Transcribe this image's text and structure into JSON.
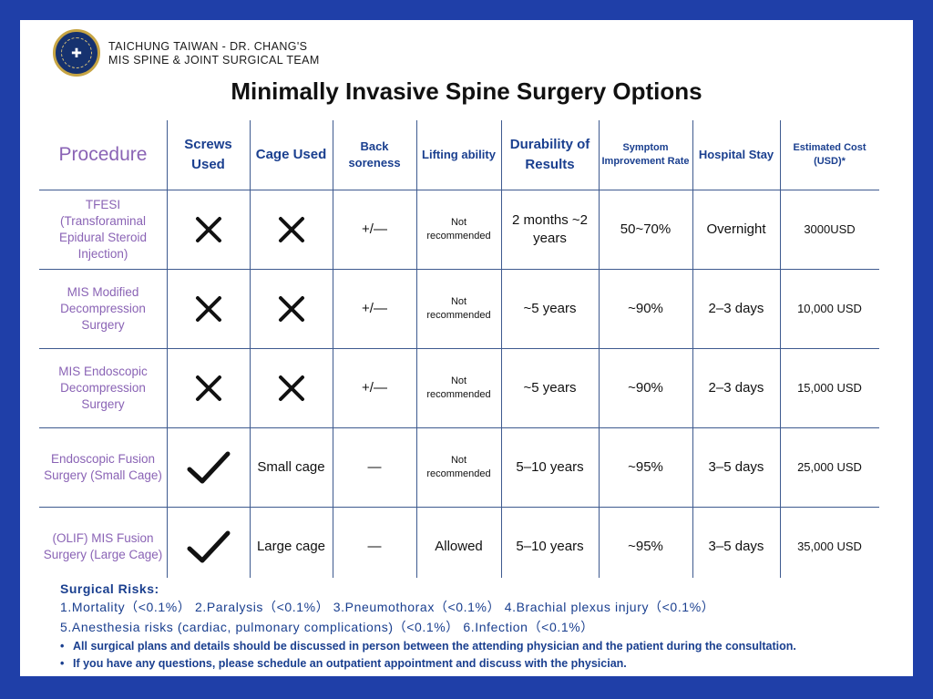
{
  "header": {
    "logo_icon": "clinic-seal-icon",
    "brand_line1": "TAICHUNG TAIWAN - DR. CHANG'S",
    "brand_line2": "MIS SPINE & JOINT SURGICAL TEAM",
    "title": "Minimally Invasive Spine Surgery Options"
  },
  "table": {
    "columns": [
      "Procedure",
      "Screws Used",
      "Cage Used",
      "Back soreness",
      "Lifting ability",
      "Durability of Results",
      "Symptom Improvement Rate",
      "Hospital Stay",
      "Estimated Cost (USD)*"
    ],
    "rows": [
      {
        "procedure": "TFESI (Transforaminal Epidural Steroid Injection)",
        "screws": "cross-icon",
        "cage": "cross-icon",
        "back_soreness": "+/—",
        "lifting": "Not recommended",
        "durability": "2 months ~2 years",
        "improvement": "50~70%",
        "stay": "Overnight",
        "cost": "3000USD"
      },
      {
        "procedure": "MIS Modified Decompression Surgery",
        "screws": "cross-icon",
        "cage": "cross-icon",
        "back_soreness": "+/—",
        "lifting": "Not recommended",
        "durability": "~5 years",
        "improvement": "~90%",
        "stay": "2–3 days",
        "cost": "10,000 USD"
      },
      {
        "procedure": "MIS Endoscopic Decompression Surgery",
        "screws": "cross-icon",
        "cage": "cross-icon",
        "back_soreness": "+/—",
        "lifting": "Not recommended",
        "durability": "~5 years",
        "improvement": "~90%",
        "stay": "2–3 days",
        "cost": "15,000 USD"
      },
      {
        "procedure": "Endoscopic Fusion Surgery (Small Cage)",
        "screws": "check-icon",
        "cage": "Small cage",
        "back_soreness": "—",
        "lifting": "Not recommended",
        "durability": "5–10 years",
        "improvement": "~95%",
        "stay": "3–5 days",
        "cost": "25,000 USD"
      },
      {
        "procedure": "(OLIF) MIS Fusion Surgery (Large Cage)",
        "screws": "check-icon",
        "cage": "Large cage",
        "back_soreness": "—",
        "lifting": "Allowed",
        "durability": "5–10 years",
        "improvement": "~95%",
        "stay": "3–5 days",
        "cost": "35,000 USD"
      }
    ]
  },
  "risks": {
    "title": "Surgical Risks:",
    "line1": "1.Mortality（<0.1%） 2.Paralysis（<0.1%） 3.Pneumothorax（<0.1%） 4.Brachial plexus injury（<0.1%）",
    "line2": "5.Anesthesia risks (cardiac, pulmonary complications)（<0.1%） 6.Infection（<0.1%）"
  },
  "notes": [
    "All surgical plans and details should be discussed in person between the attending physician and the patient during the consultation.",
    "If you have any questions, please schedule an outpatient appointment and discuss with the physician."
  ]
}
